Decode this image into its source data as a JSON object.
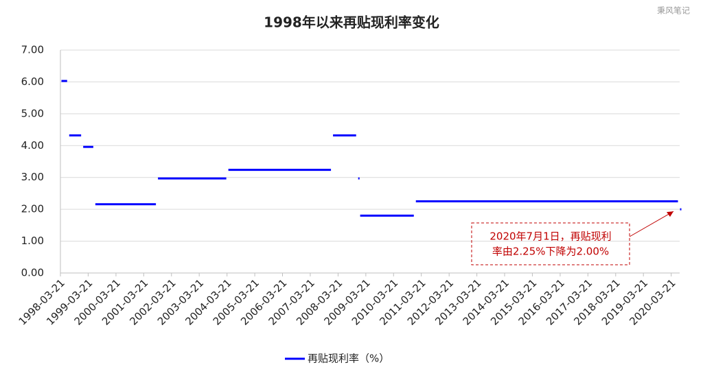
{
  "chart_data": {
    "type": "step",
    "title": "1998年以来再贴现利率变化",
    "watermark": "秉风笔记",
    "series": [
      {
        "name": "再贴现利率（%）",
        "color": "#0000ff",
        "x": [
          "1998-03-21",
          "1998-07-01",
          "1999-01-01",
          "1999-06-10",
          "2001-09-11",
          "2004-03-25",
          "2008-01-01",
          "2008-11-27",
          "2008-12-23",
          "2010-12-26",
          "2020-07-01"
        ],
        "values": [
          6.03,
          4.32,
          3.96,
          2.16,
          2.97,
          3.24,
          4.32,
          2.97,
          1.8,
          2.25,
          2.0
        ]
      }
    ],
    "xlim": [
      "1998-03-21",
      "2020-07-10"
    ],
    "xticks": [
      "1998-03-21",
      "1999-03-21",
      "2000-03-21",
      "2001-03-21",
      "2002-03-21",
      "2003-03-21",
      "2004-03-21",
      "2005-03-21",
      "2006-03-21",
      "2007-03-21",
      "2008-03-21",
      "2009-03-21",
      "2010-03-21",
      "2011-03-21",
      "2012-03-21",
      "2013-03-21",
      "2014-03-21",
      "2015-03-21",
      "2016-03-21",
      "2017-03-21",
      "2018-03-21",
      "2019-03-21",
      "2020-03-21"
    ],
    "ylim": [
      0,
      7
    ],
    "yticks": [
      {
        "value": 0,
        "label": "0.00"
      },
      {
        "value": 1,
        "label": "1.00"
      },
      {
        "value": 2,
        "label": "2.00"
      },
      {
        "value": 3,
        "label": "3.00"
      },
      {
        "value": 4,
        "label": "4.00"
      },
      {
        "value": 5,
        "label": "5.00"
      },
      {
        "value": 6,
        "label": "6.00"
      },
      {
        "value": 7,
        "label": "7.00"
      }
    ],
    "grid": true,
    "legend": "bottom",
    "annotation": {
      "lines": [
        "2020年7月1日，再贴现利",
        "率由2.25%下降为2.00%"
      ],
      "color": "#c00000"
    }
  }
}
